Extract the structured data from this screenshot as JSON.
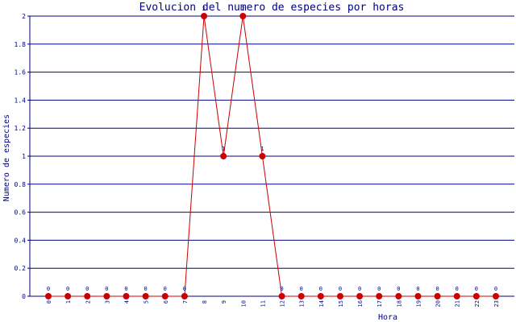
{
  "chart_data": {
    "type": "line",
    "title": "Evolucion del numero de especies por horas",
    "x_label": "Hora",
    "y_label": "Numero de especies",
    "categories": [
      "0",
      "1",
      "2",
      "3",
      "4",
      "5",
      "6",
      "7",
      "8",
      "9",
      "10",
      "11",
      "12",
      "13",
      "14",
      "15",
      "16",
      "17",
      "18",
      "19",
      "20",
      "21",
      "22",
      "23"
    ],
    "values": [
      0,
      0,
      0,
      0,
      0,
      0,
      0,
      0,
      2,
      1,
      2,
      1,
      0,
      0,
      0,
      0,
      0,
      0,
      0,
      0,
      0,
      0,
      0,
      0
    ],
    "color": "#cc0000",
    "ylim": [
      0,
      2
    ],
    "yticks": [
      0,
      0.2,
      0.4,
      0.6,
      0.8,
      1,
      1.2,
      1.4,
      1.6,
      1.8,
      2
    ],
    "grid": true
  }
}
